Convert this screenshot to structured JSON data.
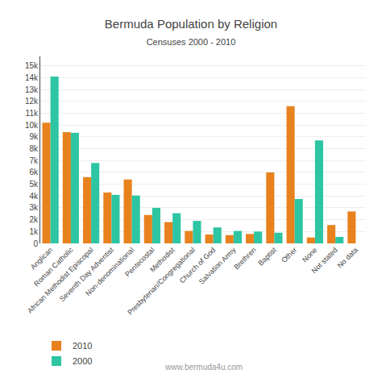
{
  "chart_data": {
    "type": "bar",
    "title": "Bermuda Population by Religion",
    "subtitle": "Censuses 2000 - 2010",
    "annotations": [
      "www.bermuda4u.com"
    ],
    "categories": [
      "Anglican",
      "Roman Catholic",
      "African Methodist Episcopal",
      "Seventh Day Adventist",
      "Non-denominational",
      "Pentecostal",
      "Methodist",
      "Presbyterian/Congregational",
      "Church of God",
      "Salvation Army",
      "Brethren",
      "Baptist",
      "Other",
      "None",
      "Not stated",
      "No data"
    ],
    "series": [
      {
        "name": "2010",
        "color": "#E8821E",
        "values": [
          10200,
          9400,
          5600,
          4300,
          5400,
          2400,
          1800,
          1050,
          750,
          700,
          800,
          6000,
          11600,
          500,
          1550,
          2700
        ]
      },
      {
        "name": "2000",
        "color": "#2DC5A2",
        "values": [
          14100,
          9350,
          6800,
          4100,
          4050,
          3000,
          2550,
          1900,
          1350,
          1050,
          1000,
          900,
          3750,
          8700,
          550,
          0
        ]
      }
    ],
    "ylim": [
      0,
      15800
    ],
    "yticks": [
      0,
      {
        "value": 1000,
        "label": "1k"
      },
      {
        "value": 2000,
        "label": "2k"
      },
      {
        "value": 3000,
        "label": "3k"
      },
      {
        "value": 4000,
        "label": "4k"
      },
      {
        "value": 5000,
        "label": "5k"
      },
      {
        "value": 6000,
        "label": "6k"
      },
      {
        "value": 7000,
        "label": "7k"
      },
      {
        "value": 8000,
        "label": "8k"
      },
      {
        "value": 9000,
        "label": "9k"
      },
      {
        "value": 10000,
        "label": "10k"
      },
      {
        "value": 11000,
        "label": "11k"
      },
      {
        "value": 12000,
        "label": "12k"
      },
      {
        "value": 13000,
        "label": "13k"
      },
      {
        "value": 14000,
        "label": "14k"
      },
      {
        "value": 15000,
        "label": "15k"
      }
    ],
    "grid": true,
    "legend": "lower left"
  }
}
